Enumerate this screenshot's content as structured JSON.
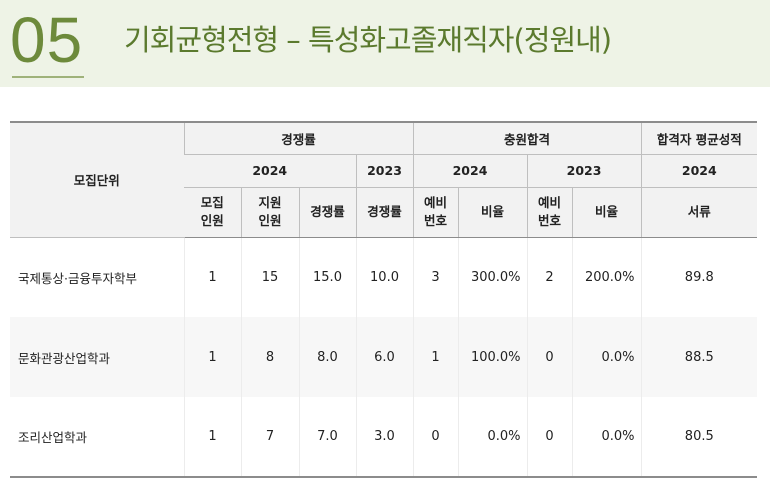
{
  "header": {
    "section_number": "05",
    "title": "기회균형전형 – 특성화고졸재직자(정원내)"
  },
  "table": {
    "unit_header": "모집단위",
    "group_headers": {
      "competition": "경쟁률",
      "waitlist": "충원합격",
      "average": "합격자 평균성적"
    },
    "year_headers": {
      "competition_2024": "2024",
      "competition_2023": "2023",
      "waitlist_2024": "2024",
      "waitlist_2023": "2023",
      "average_2024": "2024"
    },
    "sub_headers": {
      "recruit_1": "모집",
      "recruit_2": "인원",
      "applicants_1": "지원",
      "applicants_2": "인원",
      "rate_2024": "경쟁률",
      "rate_2023": "경쟁률",
      "wait_num_2024_1": "예비",
      "wait_num_2024_2": "번호",
      "wait_ratio_2024": "비율",
      "wait_num_2023_1": "예비",
      "wait_num_2023_2": "번호",
      "wait_ratio_2023": "비율",
      "documents": "서류"
    },
    "rows": [
      {
        "unit": "국제통상·금융투자학부",
        "recruit": "1",
        "applicants": "15",
        "rate_2024": "15.0",
        "rate_2023": "10.0",
        "wait_2024": "3",
        "ratio_2024": "300.0%",
        "wait_2023": "2",
        "ratio_2023": "200.0%",
        "documents": "89.8"
      },
      {
        "unit": "문화관광산업학과",
        "recruit": "1",
        "applicants": "8",
        "rate_2024": "8.0",
        "rate_2023": "6.0",
        "wait_2024": "1",
        "ratio_2024": "100.0%",
        "wait_2023": "0",
        "ratio_2023": "0.0%",
        "documents": "88.5"
      },
      {
        "unit": "조리산업학과",
        "recruit": "1",
        "applicants": "7",
        "rate_2024": "7.0",
        "rate_2023": "3.0",
        "wait_2024": "0",
        "ratio_2024": "0.0%",
        "wait_2023": "0",
        "ratio_2023": "0.0%",
        "documents": "80.5"
      }
    ]
  }
}
